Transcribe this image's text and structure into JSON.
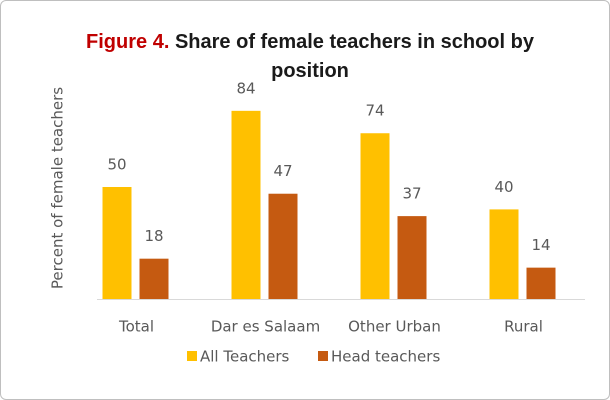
{
  "chart_data": {
    "type": "bar",
    "figure_label": "Figure 4.",
    "title": "Share of female teachers in school by position",
    "y_label": "Percent of female teachers",
    "categories": [
      "Total",
      "Dar es Salaam",
      "Other Urban",
      "Rural"
    ],
    "series": [
      {
        "name": "All Teachers",
        "color": "#FFC000",
        "values": [
          50,
          84,
          74,
          40
        ]
      },
      {
        "name": "Head teachers",
        "color": "#C55A11",
        "values": [
          18,
          47,
          37,
          14
        ]
      }
    ],
    "ylim": [
      0,
      100
    ],
    "legend": "bottom"
  }
}
